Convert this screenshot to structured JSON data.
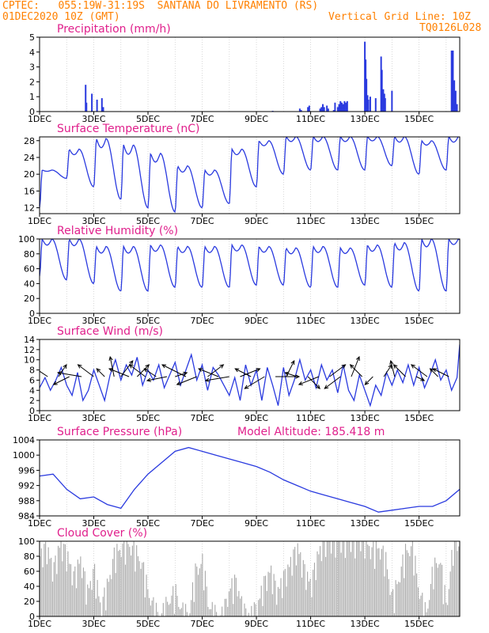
{
  "header": {
    "station": "CPTEC:   055:19W-31:19S  SANTANA DO LIVRAMENTO (RS)",
    "date": "01DEC2020 10Z (GMT)",
    "grid_note": "Vertical Grid Line: 10Z",
    "model_code": "TQ0126L028"
  },
  "x_tick_labels": [
    "1DEC",
    "3DEC",
    "5DEC",
    "7DEC",
    "9DEC",
    "11DEC",
    "13DEC",
    "15DEC"
  ],
  "colors": {
    "header": "#ff8000",
    "panel_title": "#e0208c",
    "series": "#2a3adf",
    "cloud": "#a8a8a8",
    "wind_arrow": "#000000"
  },
  "panels": {
    "precip": {
      "title": "Precipitation  (mm/h)"
    },
    "temp": {
      "title": "Surface Temperature (nC)"
    },
    "rh": {
      "title": "Relative Humidity (%)"
    },
    "wind": {
      "title": "Surface Wind  (m/s)"
    },
    "pressure": {
      "title": "Surface Pressure (hPa)",
      "note": "Model Altitude: 185.418  m"
    },
    "cloud": {
      "title": "Cloud Cover (%)"
    }
  },
  "chart_data": [
    {
      "type": "bar",
      "id": "precip",
      "title": "Precipitation  (mm/h)",
      "x_unit": "days since 01DEC2020 10Z",
      "xlim": [
        0,
        15.5
      ],
      "ylim": [
        0,
        5
      ],
      "yticks": [
        0,
        1,
        2,
        3,
        4,
        5
      ],
      "x": [
        1.7,
        1.73,
        1.93,
        2.12,
        2.3,
        2.35,
        8.6,
        9.6,
        9.65,
        9.9,
        9.95,
        10.35,
        10.4,
        10.45,
        10.5,
        10.6,
        10.65,
        10.85,
        10.9,
        11.0,
        11.05,
        11.1,
        11.15,
        11.2,
        11.25,
        11.3,
        11.35,
        12.0,
        12.03,
        12.06,
        12.1,
        12.13,
        12.2,
        12.4,
        12.6,
        12.63,
        12.68,
        12.72,
        12.75,
        13.0,
        15.2,
        15.25,
        15.3,
        15.35,
        15.4
      ],
      "values": [
        1.8,
        0.6,
        1.2,
        0.8,
        0.9,
        0.3,
        0.05,
        0.2,
        0.1,
        0.3,
        0.4,
        0.2,
        0.3,
        0.5,
        0.3,
        0.4,
        0.2,
        0.1,
        0.6,
        0.3,
        0.5,
        0.7,
        0.6,
        0.5,
        0.7,
        0.6,
        0.7,
        4.7,
        3.5,
        2.2,
        1.1,
        0.8,
        1.0,
        0.9,
        3.7,
        2.8,
        1.5,
        1.2,
        0.9,
        1.4,
        4.1,
        4.1,
        2.1,
        1.4,
        0.5
      ]
    },
    {
      "type": "line",
      "id": "temp",
      "title": "Surface Temperature (nC)",
      "xlim": [
        0,
        15.5
      ],
      "ylim": [
        10.6,
        28.9
      ],
      "yticks": [
        12,
        16,
        20,
        24,
        28
      ],
      "daily_max": [
        21,
        26,
        28.5,
        27,
        25,
        22,
        21,
        26,
        28,
        29,
        29,
        29,
        29,
        29,
        28,
        29
      ],
      "daily_min": [
        12,
        19,
        17,
        14,
        12,
        11,
        12,
        13,
        17,
        20,
        21,
        21,
        21,
        22,
        20,
        21,
        20,
        20
      ]
    },
    {
      "type": "line",
      "id": "rh",
      "title": "Relative Humidity (%)",
      "xlim": [
        0,
        15.5
      ],
      "ylim": [
        0,
        100
      ],
      "yticks": [
        0,
        20,
        40,
        60,
        80,
        100
      ],
      "daily_max": [
        100,
        100,
        90,
        90,
        92,
        90,
        90,
        92,
        90,
        88,
        90,
        88,
        92,
        95,
        100,
        100,
        80
      ],
      "daily_min": [
        50,
        45,
        40,
        30,
        30,
        35,
        35,
        35,
        38,
        38,
        35,
        35,
        38,
        35,
        30,
        30,
        50
      ]
    },
    {
      "type": "line",
      "id": "wind",
      "title": "Surface Wind  (m/s)",
      "xlim": [
        0,
        15.5
      ],
      "ylim": [
        0,
        14
      ],
      "yticks": [
        0,
        2,
        4,
        6,
        8,
        10,
        12,
        14
      ],
      "x": [
        0,
        0.2,
        0.4,
        0.6,
        0.8,
        1.0,
        1.2,
        1.4,
        1.6,
        1.8,
        2.0,
        2.2,
        2.4,
        2.6,
        2.8,
        3.0,
        3.2,
        3.4,
        3.6,
        3.8,
        4.0,
        4.2,
        4.4,
        4.6,
        4.8,
        5.0,
        5.2,
        5.4,
        5.6,
        5.8,
        6.0,
        6.2,
        6.4,
        6.6,
        6.8,
        7.0,
        7.2,
        7.4,
        7.6,
        7.8,
        8.0,
        8.2,
        8.4,
        8.6,
        8.8,
        9.0,
        9.2,
        9.4,
        9.6,
        9.8,
        10.0,
        10.2,
        10.4,
        10.6,
        10.8,
        11.0,
        11.2,
        11.4,
        11.6,
        11.8,
        12.0,
        12.2,
        12.4,
        12.6,
        12.8,
        13.0,
        13.2,
        13.4,
        13.6,
        13.8,
        14.0,
        14.2,
        14.4,
        14.6,
        14.8,
        15.0,
        15.2,
        15.4,
        15.5
      ],
      "values": [
        4.5,
        6.5,
        4.0,
        6.0,
        8.5,
        5.0,
        3.0,
        7.5,
        2.0,
        4.0,
        8.0,
        5.0,
        2.0,
        7.0,
        10.0,
        6.0,
        9.0,
        7.0,
        10.5,
        5.0,
        8.0,
        6.0,
        9.0,
        4.5,
        7.0,
        9.5,
        5.0,
        8.0,
        11.0,
        6.0,
        9.0,
        4.0,
        8.5,
        7.0,
        5.0,
        3.0,
        6.5,
        2.0,
        9.0,
        5.0,
        8.0,
        2.0,
        8.5,
        5.0,
        1.0,
        8.5,
        3.0,
        6.0,
        10.0,
        6.0,
        8.0,
        4.5,
        9.0,
        6.0,
        8.0,
        3.5,
        9.0,
        4.0,
        2.0,
        7.0,
        4.0,
        1.0,
        5.0,
        3.0,
        7.5,
        5.0,
        8.0,
        5.5,
        9.0,
        5.0,
        8.5,
        4.5,
        7.0,
        10.0,
        6.0,
        8.0,
        4.0,
        6.5,
        13.0
      ],
      "barbs_x": [
        0.3,
        0.7,
        1.1,
        1.55,
        2.0,
        2.4,
        2.75,
        3.0,
        3.3,
        3.6,
        3.9,
        4.3,
        4.7,
        5.0,
        5.4,
        5.8,
        6.2,
        6.6,
        7.0,
        7.4,
        7.8,
        8.3,
        8.7,
        9.1,
        9.5,
        9.9,
        10.3,
        10.7,
        11.1,
        11.5,
        11.9,
        12.3,
        12.7,
        13.1,
        13.5,
        13.9,
        14.3,
        14.7,
        15.1
      ],
      "barbs_u": [
        -3,
        2,
        -4,
        -6,
        -4,
        -2,
        -1,
        3,
        -5,
        3,
        -4,
        -3,
        -5,
        3,
        -6,
        -5,
        4,
        -5,
        -6,
        5,
        -4,
        -5,
        6,
        2,
        -3,
        3,
        -5,
        4,
        -4,
        2,
        -3,
        -2,
        2,
        -1,
        -3,
        2,
        -4,
        -2,
        -4
      ],
      "barbs_v": [
        2,
        3,
        -2,
        1,
        3,
        2,
        5,
        4,
        2,
        3,
        3,
        2,
        -1,
        1,
        3,
        -2,
        3,
        2,
        -1,
        2,
        2,
        -3,
        0,
        4,
        1,
        -3,
        -2,
        3,
        -3,
        5,
        3,
        -2,
        3,
        4,
        3,
        -1,
        3,
        2,
        2
      ]
    },
    {
      "type": "line",
      "id": "pressure",
      "title": "Surface Pressure (hPa)",
      "xlim": [
        0,
        15.5
      ],
      "ylim": [
        984,
        1004
      ],
      "yticks": [
        984,
        988,
        992,
        996,
        1000,
        1004
      ],
      "x": [
        0,
        0.5,
        1,
        1.5,
        2,
        2.5,
        3,
        3.5,
        4,
        4.5,
        5,
        5.5,
        6,
        6.5,
        7,
        7.5,
        8,
        8.5,
        9,
        9.5,
        10,
        10.5,
        11,
        11.5,
        12,
        12.5,
        13,
        13.5,
        14,
        14.5,
        15,
        15.5
      ],
      "values": [
        994.5,
        995,
        991,
        988.5,
        989,
        987,
        986,
        991,
        995,
        998,
        1001,
        1002,
        1001,
        1000,
        999,
        998,
        997,
        995.5,
        993.5,
        992,
        990.5,
        989.5,
        988.5,
        987.5,
        986.5,
        985,
        985.5,
        986,
        986.5,
        986.5,
        988,
        991
      ]
    },
    {
      "type": "bar",
      "id": "cloud",
      "title": "Cloud Cover (%)",
      "xlim": [
        0,
        15.5
      ],
      "ylim": [
        0,
        100
      ],
      "yticks": [
        0,
        20,
        40,
        60,
        80,
        100
      ],
      "x": [
        0,
        0.25,
        0.5,
        0.75,
        1.0,
        1.25,
        1.5,
        1.75,
        2.0,
        2.25,
        2.5,
        2.75,
        3.0,
        3.25,
        3.5,
        3.75,
        4.0,
        4.25,
        4.5,
        4.75,
        5.0,
        5.25,
        5.5,
        5.75,
        6.0,
        6.25,
        6.5,
        6.75,
        7.0,
        7.25,
        7.5,
        7.75,
        8.0,
        8.25,
        8.5,
        8.75,
        9.0,
        9.25,
        9.5,
        9.75,
        10.0,
        10.25,
        10.5,
        10.75,
        11.0,
        11.25,
        11.5,
        11.75,
        12.0,
        12.25,
        12.5,
        12.75,
        13.0,
        13.25,
        13.5,
        13.75,
        14.0,
        14.25,
        14.5,
        14.75,
        15.0,
        15.25
      ],
      "values": [
        80,
        90,
        60,
        95,
        80,
        50,
        75,
        30,
        60,
        10,
        40,
        80,
        90,
        95,
        85,
        70,
        30,
        5,
        0,
        20,
        30,
        5,
        0,
        60,
        70,
        10,
        0,
        0,
        35,
        45,
        5,
        0,
        10,
        40,
        60,
        30,
        50,
        70,
        90,
        60,
        40,
        80,
        100,
        100,
        100,
        100,
        100,
        100,
        100,
        85,
        90,
        75,
        20,
        50,
        85,
        90,
        30,
        0,
        60,
        75,
        10,
        95
      ]
    }
  ]
}
